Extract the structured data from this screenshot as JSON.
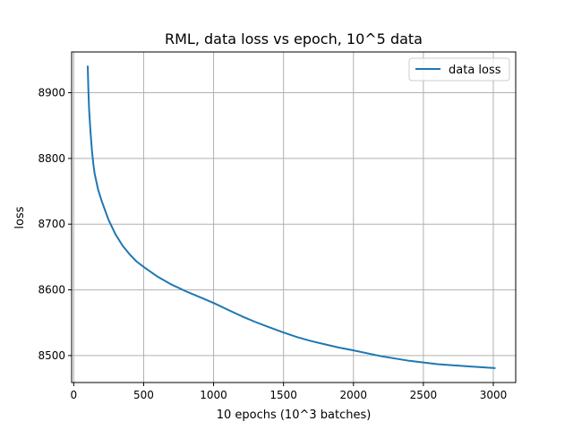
{
  "chart_data": {
    "type": "line",
    "title": "RML, data loss vs epoch, 10^5 data",
    "xlabel": "10 epochs (10^3 batches)",
    "ylabel": "loss",
    "xlim": [
      -15,
      3160
    ],
    "ylim": [
      8459,
      8962
    ],
    "grid": true,
    "legend_position": "top-right",
    "xticks": [
      0,
      500,
      1000,
      1500,
      2000,
      2500,
      3000
    ],
    "yticks": [
      8500,
      8600,
      8700,
      8800,
      8900
    ],
    "series": [
      {
        "name": "data loss",
        "color": "#1f77b4",
        "x": [
          100,
          105,
          110,
          120,
          130,
          140,
          150,
          175,
          200,
          250,
          300,
          350,
          400,
          450,
          500,
          600,
          700,
          800,
          900,
          1000,
          1100,
          1200,
          1300,
          1400,
          1500,
          1600,
          1700,
          1800,
          1900,
          2000,
          2200,
          2400,
          2600,
          2800,
          3010
        ],
        "y": [
          8940,
          8905,
          8875,
          8840,
          8812,
          8792,
          8776,
          8752,
          8735,
          8706,
          8684,
          8667,
          8654,
          8643,
          8635,
          8620,
          8608,
          8598,
          8589,
          8580,
          8570,
          8560,
          8551,
          8543,
          8535,
          8528,
          8522,
          8517,
          8512,
          8508,
          8499,
          8492,
          8487,
          8484,
          8481
        ]
      }
    ]
  }
}
